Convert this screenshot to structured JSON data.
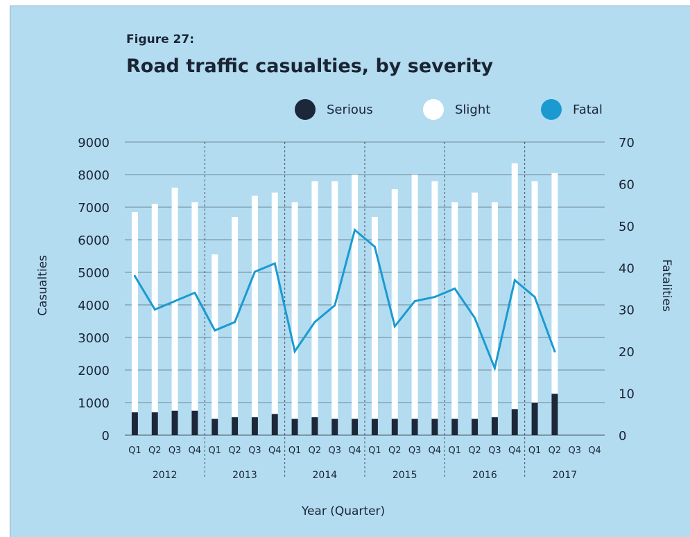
{
  "figure_label": "Figure 27:",
  "colors": {
    "background": "#b3dcf1",
    "serious": "#1c2839",
    "slight": "#ffffff",
    "fatal": "#1b9ad1",
    "text": "#1a2433"
  },
  "chart_data": {
    "type": "bar",
    "title": "Road traffic casualties, by severity",
    "xlabel": "Year (Quarter)",
    "ylabel": "Casualties",
    "y2label": "Fatalities",
    "ylim": [
      0,
      9000
    ],
    "y2lim": [
      0,
      70
    ],
    "yticks": [
      "0",
      "1000",
      "2000",
      "3000",
      "4000",
      "5000",
      "6000",
      "7000",
      "8000",
      "9000"
    ],
    "y2ticks": [
      "0",
      "10",
      "20",
      "30",
      "40",
      "50",
      "60",
      "70"
    ],
    "grid": true,
    "legend_position": "top",
    "years": [
      "2012",
      "2013",
      "2014",
      "2015",
      "2016",
      "2017"
    ],
    "categories": [
      "Q1",
      "Q2",
      "Q3",
      "Q4",
      "Q1",
      "Q2",
      "Q3",
      "Q4",
      "Q1",
      "Q2",
      "Q3",
      "Q4",
      "Q1",
      "Q2",
      "Q3",
      "Q4",
      "Q1",
      "Q2",
      "Q3",
      "Q4",
      "Q1",
      "Q2",
      "Q3",
      "Q4"
    ],
    "series": [
      {
        "name": "Serious",
        "type": "bar",
        "axis": "left",
        "values": [
          700,
          700,
          750,
          750,
          500,
          550,
          550,
          650,
          500,
          550,
          500,
          500,
          500,
          500,
          500,
          500,
          500,
          500,
          550,
          800,
          1000,
          1270,
          null,
          null
        ]
      },
      {
        "name": "Slight",
        "type": "bar",
        "axis": "left",
        "values": [
          6850,
          7100,
          7600,
          7150,
          5550,
          6700,
          7350,
          7450,
          7150,
          7800,
          7800,
          8000,
          6700,
          7550,
          8000,
          7800,
          7150,
          7450,
          7150,
          8350,
          7800,
          8050,
          null,
          null
        ]
      },
      {
        "name": "Fatal",
        "type": "line",
        "axis": "right",
        "values": [
          38,
          30,
          32,
          34,
          25,
          27,
          39,
          41,
          20,
          27,
          31,
          49,
          45,
          26,
          32,
          33,
          35,
          28,
          16,
          37,
          33,
          20,
          null,
          null
        ]
      }
    ]
  }
}
